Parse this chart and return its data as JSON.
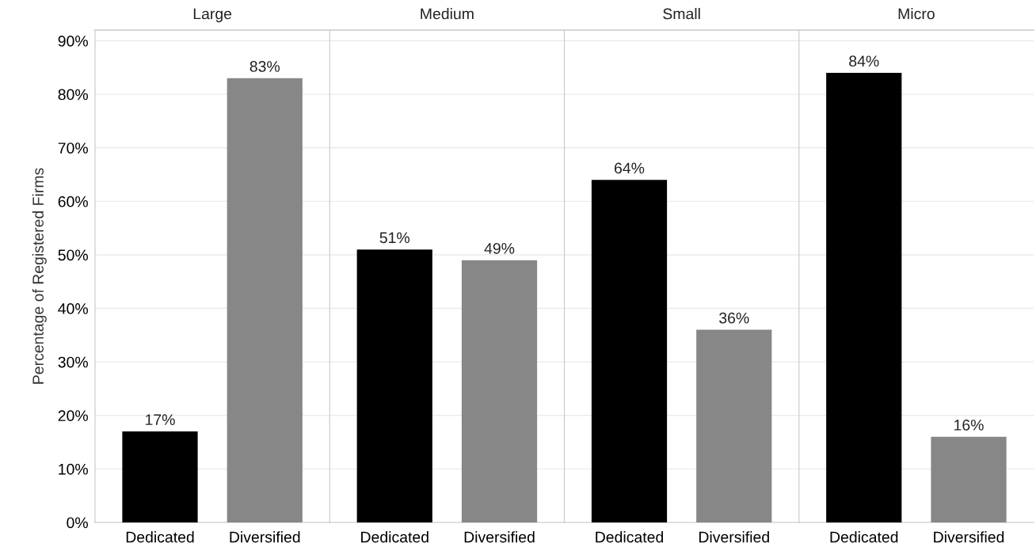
{
  "chart_data": [
    {
      "type": "bar",
      "title": "Large",
      "ylabel": "Percentage of Registered Firms",
      "categories": [
        "Dedicated",
        "Diversified"
      ],
      "values": [
        17,
        83
      ],
      "value_labels": [
        "17%",
        "83%"
      ],
      "colors": [
        "#000000",
        "#878787"
      ],
      "ylim": [
        0,
        92
      ],
      "yticks": [
        {
          "value": 0,
          "label": "0%"
        },
        {
          "value": 10,
          "label": "10%"
        },
        {
          "value": 20,
          "label": "20%"
        },
        {
          "value": 30,
          "label": "30%"
        },
        {
          "value": 40,
          "label": "40%"
        },
        {
          "value": 50,
          "label": "50%"
        },
        {
          "value": 60,
          "label": "60%"
        },
        {
          "value": 70,
          "label": "70%"
        },
        {
          "value": 80,
          "label": "80%"
        },
        {
          "value": 90,
          "label": "90%"
        }
      ],
      "grid": "y"
    },
    {
      "type": "bar",
      "title": "Medium",
      "categories": [
        "Dedicated",
        "Diversified"
      ],
      "values": [
        51,
        49
      ],
      "value_labels": [
        "51%",
        "49%"
      ],
      "colors": [
        "#000000",
        "#878787"
      ],
      "ylim": [
        0,
        92
      ],
      "tick_labels": "x",
      "grid": "y"
    },
    {
      "type": "bar",
      "title": "Small",
      "categories": [
        "Dedicated",
        "Diversified"
      ],
      "values": [
        64,
        36
      ],
      "value_labels": [
        "64%",
        "36%"
      ],
      "colors": [
        "#000000",
        "#878787"
      ],
      "ylim": [
        0,
        92
      ],
      "tick_labels": "x",
      "grid": "y"
    },
    {
      "type": "bar",
      "title": "Micro",
      "categories": [
        "Dedicated",
        "Diversified"
      ],
      "values": [
        84,
        16
      ],
      "value_labels": [
        "84%",
        "16%"
      ],
      "colors": [
        "#000000",
        "#878787"
      ],
      "ylim": [
        0,
        92
      ],
      "tick_labels": "x",
      "grid": "y"
    }
  ]
}
